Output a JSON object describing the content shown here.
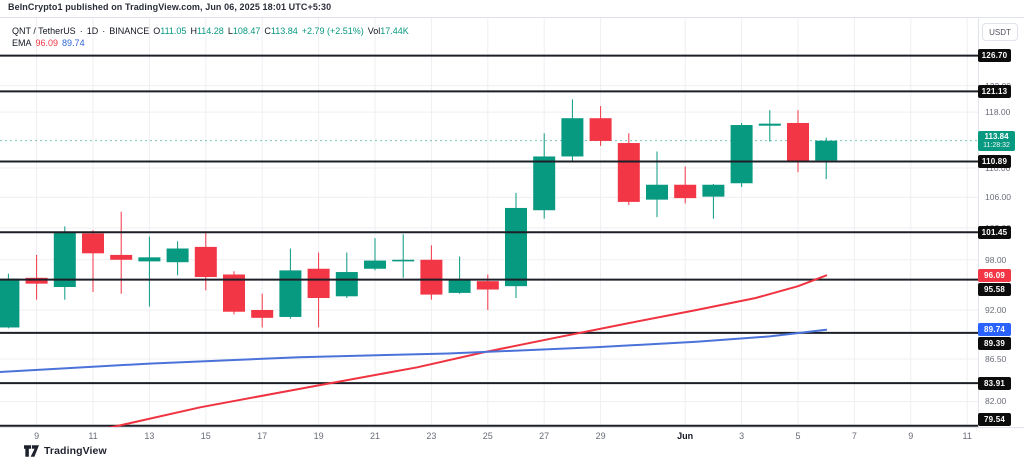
{
  "attribution": "BeInCrypto1 published on TradingView.com, Jun 06, 2025 18:01 UTC+5:30",
  "legend": {
    "symbol": "QNT / TetherUS",
    "dot": "·",
    "interval": "1D",
    "exchange": "BINANCE",
    "o_label": "O",
    "o_value": "111.05",
    "h_label": "H",
    "h_value": "114.28",
    "l_label": "L",
    "l_value": "108.47",
    "c_label": "C",
    "c_value": "113.84",
    "change": "+2.79 (+2.51%)",
    "vol_label": "Vol",
    "vol_value": "17.44K",
    "ema_label": "EMA",
    "ema_fast_value": "96.09",
    "ema_slow_value": "89.74"
  },
  "price_axis": {
    "currency_label": "USDT",
    "ticks": [
      {
        "price": 122.0,
        "label": "122.00"
      },
      {
        "price": 118.0,
        "label": "118.00"
      },
      {
        "price": 110.0,
        "label": "110.00"
      },
      {
        "price": 106.0,
        "label": "106.00"
      },
      {
        "price": 102.0,
        "label": "102.00"
      },
      {
        "price": 98.0,
        "label": "98.00"
      },
      {
        "price": 92.0,
        "label": "92.00"
      },
      {
        "price": 86.5,
        "label": "86.50"
      },
      {
        "price": 82.0,
        "label": "82.00"
      }
    ],
    "level_badges": [
      {
        "price": 126.7,
        "label": "126.70"
      },
      {
        "price": 121.13,
        "label": "121.13"
      },
      {
        "price": 110.89,
        "label": "110.89"
      },
      {
        "price": 101.45,
        "label": "101.45"
      },
      {
        "price": 95.58,
        "label": "95.58"
      },
      {
        "price": 89.39,
        "label": "89.39"
      },
      {
        "price": 83.91,
        "label": "83.91"
      },
      {
        "price": 79.54,
        "label": "79.54"
      }
    ],
    "ema_badges": [
      {
        "price": 96.09,
        "label": "96.09",
        "color_key": "ema_fast_badge"
      },
      {
        "price": 89.74,
        "label": "89.74",
        "color_key": "ema_slow_badge"
      }
    ],
    "last": {
      "price": 113.84,
      "label": "113.84",
      "countdown": "11:28:32"
    }
  },
  "time_axis": {
    "labels": [
      {
        "text": "9",
        "day": 1,
        "month": false
      },
      {
        "text": "11",
        "day": 3,
        "month": false
      },
      {
        "text": "13",
        "day": 5,
        "month": false
      },
      {
        "text": "15",
        "day": 7,
        "month": false
      },
      {
        "text": "17",
        "day": 9,
        "month": false
      },
      {
        "text": "19",
        "day": 11,
        "month": false
      },
      {
        "text": "21",
        "day": 13,
        "month": false
      },
      {
        "text": "23",
        "day": 15,
        "month": false
      },
      {
        "text": "25",
        "day": 17,
        "month": false
      },
      {
        "text": "27",
        "day": 19,
        "month": false
      },
      {
        "text": "29",
        "day": 21,
        "month": false
      },
      {
        "text": "Jun",
        "day": 24,
        "month": true
      },
      {
        "text": "3",
        "day": 26,
        "month": false
      },
      {
        "text": "5",
        "day": 28,
        "month": false
      },
      {
        "text": "7",
        "day": 30,
        "month": false
      },
      {
        "text": "9",
        "day": 32,
        "month": false
      },
      {
        "text": "11",
        "day": 34,
        "month": false
      }
    ]
  },
  "footer": {
    "brand": "TradingView"
  },
  "colors": {
    "up": "#089981",
    "down": "#f23645",
    "ema_fast": "#ef3340",
    "ema_slow": "#4a72d9",
    "ema_fast_badge": "#f23645",
    "ema_slow_badge": "#2962ff",
    "level_line": "#1c1f27",
    "grid": "#efeff2",
    "last_price_line": "#089981"
  },
  "chart_data": {
    "type": "candlestick",
    "title": "QNT / TetherUS · 1D · BINANCE",
    "y_axis": "Price (USDT), log scale",
    "x_axis": "Date (May 8 – Jun 6, 2025, daily)",
    "y_range_visible": [
      79.0,
      128.5
    ],
    "grid": true,
    "candles": [
      {
        "date": "May 8",
        "day": 0,
        "o": 90.0,
        "h": 96.3,
        "l": 89.9,
        "c": 95.7
      },
      {
        "date": "May 9",
        "day": 1,
        "o": 95.8,
        "h": 98.6,
        "l": 93.2,
        "c": 95.1
      },
      {
        "date": "May 10",
        "day": 2,
        "o": 94.7,
        "h": 102.2,
        "l": 93.2,
        "c": 101.5
      },
      {
        "date": "May 11",
        "day": 3,
        "o": 101.3,
        "h": 101.7,
        "l": 94.1,
        "c": 98.8
      },
      {
        "date": "May 12",
        "day": 4,
        "o": 98.6,
        "h": 104.1,
        "l": 93.9,
        "c": 98.0
      },
      {
        "date": "May 13",
        "day": 5,
        "o": 97.8,
        "h": 100.9,
        "l": 92.4,
        "c": 98.3
      },
      {
        "date": "May 14",
        "day": 6,
        "o": 97.7,
        "h": 100.3,
        "l": 96.1,
        "c": 99.4
      },
      {
        "date": "May 15",
        "day": 7,
        "o": 99.6,
        "h": 101.5,
        "l": 94.3,
        "c": 95.9
      },
      {
        "date": "May 16",
        "day": 8,
        "o": 96.2,
        "h": 96.6,
        "l": 91.5,
        "c": 91.8
      },
      {
        "date": "May 17",
        "day": 9,
        "o": 92.0,
        "h": 93.9,
        "l": 90.0,
        "c": 91.1
      },
      {
        "date": "May 18",
        "day": 10,
        "o": 91.2,
        "h": 99.4,
        "l": 91.0,
        "c": 96.7
      },
      {
        "date": "May 19",
        "day": 11,
        "o": 96.9,
        "h": 98.9,
        "l": 90.0,
        "c": 93.4
      },
      {
        "date": "May 20",
        "day": 12,
        "o": 93.6,
        "h": 98.9,
        "l": 93.4,
        "c": 96.5
      },
      {
        "date": "May 21",
        "day": 13,
        "o": 96.9,
        "h": 100.7,
        "l": 96.7,
        "c": 97.9
      },
      {
        "date": "May 22",
        "day": 14,
        "o": 97.9,
        "h": 101.2,
        "l": 95.8,
        "c": 98.0
      },
      {
        "date": "May 23",
        "day": 15,
        "o": 98.0,
        "h": 99.8,
        "l": 93.2,
        "c": 93.8
      },
      {
        "date": "May 24",
        "day": 16,
        "o": 94.0,
        "h": 98.4,
        "l": 93.9,
        "c": 95.6
      },
      {
        "date": "May 25",
        "day": 17,
        "o": 95.4,
        "h": 96.2,
        "l": 92.0,
        "c": 94.4
      },
      {
        "date": "May 26",
        "day": 18,
        "o": 94.8,
        "h": 106.6,
        "l": 93.4,
        "c": 104.6
      },
      {
        "date": "May 27",
        "day": 19,
        "o": 104.3,
        "h": 114.9,
        "l": 103.2,
        "c": 111.6
      },
      {
        "date": "May 28",
        "day": 20,
        "o": 111.6,
        "h": 119.9,
        "l": 110.9,
        "c": 117.1
      },
      {
        "date": "May 29",
        "day": 21,
        "o": 117.1,
        "h": 118.9,
        "l": 113.1,
        "c": 113.8
      },
      {
        "date": "May 30",
        "day": 22,
        "o": 113.5,
        "h": 114.9,
        "l": 105.0,
        "c": 105.4
      },
      {
        "date": "May 31",
        "day": 23,
        "o": 105.7,
        "h": 112.3,
        "l": 103.4,
        "c": 107.7
      },
      {
        "date": "Jun 1",
        "day": 24,
        "o": 107.7,
        "h": 110.2,
        "l": 105.2,
        "c": 105.9
      },
      {
        "date": "Jun 2",
        "day": 25,
        "o": 106.1,
        "h": 107.8,
        "l": 103.2,
        "c": 107.7
      },
      {
        "date": "Jun 3",
        "day": 26,
        "o": 107.9,
        "h": 116.4,
        "l": 107.4,
        "c": 116.1
      },
      {
        "date": "Jun 4",
        "day": 27,
        "o": 116.0,
        "h": 118.3,
        "l": 113.7,
        "c": 116.3
      },
      {
        "date": "Jun 5",
        "day": 28,
        "o": 116.4,
        "h": 118.3,
        "l": 109.4,
        "c": 110.9
      },
      {
        "date": "Jun 6",
        "day": 29,
        "o": 111.05,
        "h": 114.28,
        "l": 108.47,
        "c": 113.84
      }
    ],
    "ema_series": [
      {
        "name": "EMA fast (last 96.09)",
        "color_key": "ema_fast",
        "points": [
          [
            2.0,
            78.4
          ],
          [
            4.0,
            79.6
          ],
          [
            6.8,
            81.4
          ],
          [
            10.3,
            83.3
          ],
          [
            12.5,
            84.5
          ],
          [
            14.5,
            85.6
          ],
          [
            16.8,
            87.2
          ],
          [
            19.5,
            88.9
          ],
          [
            22.0,
            90.5
          ],
          [
            24.4,
            92.0
          ],
          [
            26.5,
            93.4
          ],
          [
            28.0,
            94.8
          ],
          [
            29.0,
            96.09
          ]
        ]
      },
      {
        "name": "EMA slow (last 89.74)",
        "color_key": "ema_slow",
        "points": [
          [
            -0.3,
            85.1
          ],
          [
            5.0,
            86.0
          ],
          [
            10.3,
            86.7
          ],
          [
            15.6,
            87.1
          ],
          [
            20.9,
            87.8
          ],
          [
            24.4,
            88.4
          ],
          [
            27.0,
            89.0
          ],
          [
            29.0,
            89.74
          ]
        ]
      }
    ]
  }
}
